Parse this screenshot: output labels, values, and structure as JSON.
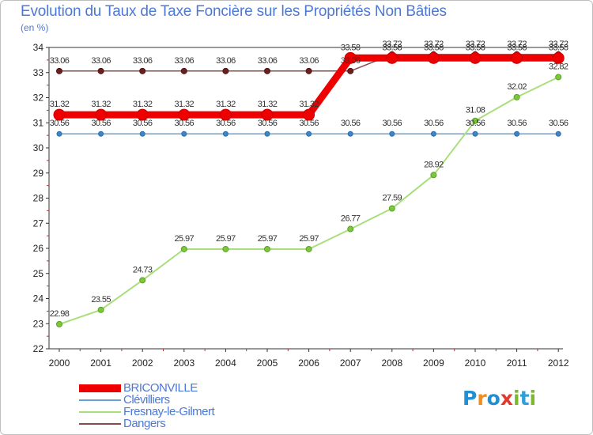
{
  "title": "Evolution du Taux de Taxe Foncière sur les Propriétés Non Bâties",
  "unit": "(en %)",
  "logo": {
    "letters": [
      "P",
      "r",
      "o",
      "x",
      "i",
      "t",
      "i"
    ],
    "colors": [
      "#1f8fd6",
      "#f28c1b",
      "#1f8fd6",
      "#e23a2e",
      "#7cb92e",
      "#2e9fd8",
      "#7cb92e"
    ]
  },
  "chart_data": {
    "type": "line",
    "title": "Evolution du Taux de Taxe Foncière sur les Propriétés Non Bâties",
    "ylabel": "(en %)",
    "xlabel": "",
    "ylim": [
      22,
      34
    ],
    "yticks": [
      "22",
      "23",
      "24",
      "25",
      "26",
      "27",
      "28",
      "29",
      "30",
      "31",
      "32",
      "33",
      "34"
    ],
    "categories": [
      "2000",
      "2001",
      "2002",
      "2003",
      "2004",
      "2005",
      "2006",
      "2007",
      "2008",
      "2009",
      "2010",
      "2011",
      "2012"
    ],
    "legend_position": "bottom-left",
    "grid": false,
    "series": [
      {
        "name": "BRICONVILLE",
        "color": "#ee0000",
        "values": [
          31.32,
          31.32,
          31.32,
          31.32,
          31.32,
          31.32,
          31.32,
          33.58,
          33.58,
          33.58,
          33.58,
          33.58,
          33.58
        ],
        "labels": [
          "31.32",
          "31.32",
          "31.32",
          "31.32",
          "31.32",
          "31.32",
          "31.32",
          "33.58",
          "33.58",
          "33.58",
          "33.58",
          "33.58",
          "33.58"
        ]
      },
      {
        "name": "Clévilliers",
        "color": "#6a9fcf",
        "values": [
          30.56,
          30.56,
          30.56,
          30.56,
          30.56,
          30.56,
          30.56,
          30.56,
          30.56,
          30.56,
          30.56,
          30.56,
          30.56
        ],
        "labels": [
          "30.56",
          "30.56",
          "30.56",
          "30.56",
          "30.56",
          "30.56",
          "30.56",
          "30.56",
          "30.56",
          "30.56",
          "30.56",
          "30.56",
          "30.56"
        ]
      },
      {
        "name": "Fresnay-le-Gilmert",
        "color": "#a8df7a",
        "values": [
          22.98,
          23.55,
          24.73,
          25.97,
          25.97,
          25.97,
          25.97,
          26.77,
          27.59,
          28.92,
          31.08,
          32.02,
          32.82
        ],
        "labels": [
          "22.98",
          "23.55",
          "24.73",
          "25.97",
          "25.97",
          "25.97",
          "25.97",
          "26.77",
          "27.59",
          "28.92",
          "31.08",
          "32.02",
          "32.82"
        ]
      },
      {
        "name": "Dangers",
        "color": "#8e4a4a",
        "values": [
          33.06,
          33.06,
          33.06,
          33.06,
          33.06,
          33.06,
          33.06,
          33.06,
          33.72,
          33.72,
          33.72,
          33.72,
          33.72
        ],
        "labels": [
          "33.06",
          "33.06",
          "33.06",
          "33.06",
          "33.06",
          "33.06",
          "33.06",
          "33.06",
          "33.72",
          "33.72",
          "33.72",
          "33.72",
          "33.72"
        ]
      }
    ]
  }
}
